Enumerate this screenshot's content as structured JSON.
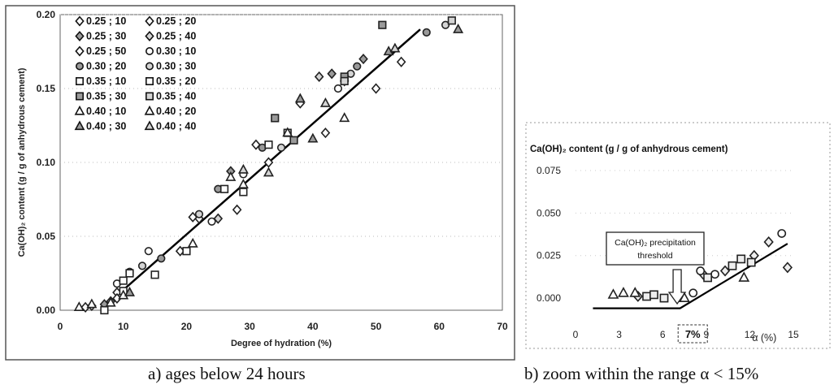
{
  "chart_data": [
    {
      "type": "scatter",
      "caption": "a) ages below 24 hours",
      "xlabel": "Degree of hydration (%)",
      "ylabel": "Ca(OH)₂ content (g / g of anhydrous cement)",
      "xlim": [
        0,
        70
      ],
      "ylim": [
        0,
        0.2
      ],
      "x_ticks": [
        "0",
        "10",
        "20",
        "30",
        "40",
        "50",
        "60",
        "70"
      ],
      "y_ticks": [
        "0.00",
        "0.05",
        "0.10",
        "0.15",
        "0.20"
      ],
      "legend_position": "top-left",
      "fit_line": [
        [
          9,
          0.01
        ],
        [
          57,
          0.19
        ]
      ],
      "series": [
        {
          "name": "0.25 ; 10",
          "marker": "diamond",
          "x": [
            4,
            9,
            19,
            33,
            38
          ],
          "y": [
            0.002,
            0.012,
            0.04,
            0.1,
            0.14
          ]
        },
        {
          "name": "0.25 ; 20",
          "marker": "diamond",
          "x": [
            5,
            22,
            28,
            42,
            54
          ],
          "y": [
            0.003,
            0.062,
            0.068,
            0.12,
            0.168
          ]
        },
        {
          "name": "0.25 ; 30",
          "marker": "diamond",
          "x": [
            7,
            27,
            43,
            48
          ],
          "y": [
            0.004,
            0.094,
            0.16,
            0.17
          ]
        },
        {
          "name": "0.25 ; 40",
          "marker": "diamond",
          "x": [
            8,
            25,
            41,
            45
          ],
          "y": [
            0.006,
            0.062,
            0.158,
            0.155
          ]
        },
        {
          "name": "0.25 ; 50",
          "marker": "diamond",
          "x": [
            9,
            21,
            31,
            50
          ],
          "y": [
            0.008,
            0.063,
            0.112,
            0.15
          ]
        },
        {
          "name": "0.30 ; 10",
          "marker": "circle",
          "x": [
            9,
            14,
            24,
            29,
            44
          ],
          "y": [
            0.018,
            0.04,
            0.06,
            0.092,
            0.15
          ]
        },
        {
          "name": "0.30 ; 20",
          "marker": "circle",
          "x": [
            11,
            16,
            25,
            32,
            47,
            58
          ],
          "y": [
            0.026,
            0.035,
            0.082,
            0.11,
            0.165,
            0.188
          ]
        },
        {
          "name": "0.30 ; 30",
          "marker": "circle",
          "x": [
            13,
            22,
            35,
            46,
            61
          ],
          "y": [
            0.03,
            0.065,
            0.11,
            0.16,
            0.193
          ]
        },
        {
          "name": "0.35 ; 10",
          "marker": "square",
          "x": [
            7,
            10,
            15,
            20,
            29
          ],
          "y": [
            0.0,
            0.02,
            0.024,
            0.04,
            0.08
          ]
        },
        {
          "name": "0.35 ; 20",
          "marker": "square",
          "x": [
            10,
            11,
            26,
            33
          ],
          "y": [
            0.013,
            0.025,
            0.082,
            0.112
          ]
        },
        {
          "name": "0.35 ; 30",
          "marker": "square",
          "x": [
            34,
            37,
            45,
            51
          ],
          "y": [
            0.13,
            0.115,
            0.158,
            0.193
          ]
        },
        {
          "name": "0.35 ; 40",
          "marker": "square",
          "x": [
            36,
            45,
            62
          ],
          "y": [
            0.12,
            0.155,
            0.196
          ]
        },
        {
          "name": "0.40 ; 10",
          "marker": "triangle",
          "x": [
            3,
            8,
            21,
            27
          ],
          "y": [
            0.002,
            0.005,
            0.045,
            0.09
          ]
        },
        {
          "name": "0.40 ; 20",
          "marker": "triangle",
          "x": [
            5,
            10,
            29,
            36,
            45
          ],
          "y": [
            0.004,
            0.01,
            0.085,
            0.12,
            0.13
          ]
        },
        {
          "name": "0.40 ; 30",
          "marker": "triangle",
          "x": [
            11,
            38,
            40,
            52,
            63
          ],
          "y": [
            0.012,
            0.143,
            0.116,
            0.175,
            0.19
          ]
        },
        {
          "name": "0.40 ; 40",
          "marker": "triangle",
          "x": [
            29,
            33,
            42,
            53
          ],
          "y": [
            0.095,
            0.093,
            0.14,
            0.177
          ]
        }
      ]
    },
    {
      "type": "scatter",
      "caption": "b) zoom within the range α < 15%",
      "title": "Ca(OH)₂ content (g / g of anhydrous cement)",
      "xlabel": "α (%)",
      "xlim": [
        0,
        15
      ],
      "ylim": [
        -0.01,
        0.075
      ],
      "x_ticks": [
        "0",
        "3",
        "6",
        "9",
        "12",
        "15"
      ],
      "y_ticks": [
        "0.000",
        "0.025",
        "0.050",
        "0.075"
      ],
      "annotation": "Ca(OH)₂ precipitation threshold",
      "threshold_label": "7%",
      "fit_line": [
        [
          1.2,
          -0.006
        ],
        [
          7.2,
          -0.006
        ],
        [
          14.6,
          0.032
        ]
      ],
      "series": [
        {
          "name": "diamond",
          "marker": "diamond",
          "x": [
            4.3,
            8.8,
            10.3,
            12.3,
            13.3,
            14.6
          ],
          "y": [
            0.001,
            0.014,
            0.016,
            0.025,
            0.033,
            0.018
          ]
        },
        {
          "name": "circle",
          "marker": "circle",
          "x": [
            8.1,
            8.6,
            9.6,
            14.2
          ],
          "y": [
            0.003,
            0.016,
            0.014,
            0.038
          ]
        },
        {
          "name": "square",
          "marker": "square",
          "x": [
            4.9,
            5.4,
            6.1,
            9.1,
            10.8,
            11.4,
            12.1
          ],
          "y": [
            0.001,
            0.002,
            0.0,
            0.012,
            0.019,
            0.023,
            0.021
          ]
        },
        {
          "name": "triangle",
          "marker": "triangle",
          "x": [
            2.6,
            3.3,
            4.1,
            7.5,
            11.6
          ],
          "y": [
            0.002,
            0.003,
            0.003,
            0.0,
            0.012
          ]
        }
      ]
    }
  ],
  "legend_labels": [
    "0.25 ; 10",
    "0.25 ; 20",
    "0.25 ; 30",
    "0.25 ; 40",
    "0.25 ; 50",
    "0.30 ; 10",
    "0.30 ; 20",
    "0.30 ; 30",
    "0.35 ; 10",
    "0.35 ; 20",
    "0.35 ; 30",
    "0.35 ; 40",
    "0.40 ; 10",
    "0.40 ; 20",
    "0.40 ; 30",
    "0.40 ; 40"
  ]
}
